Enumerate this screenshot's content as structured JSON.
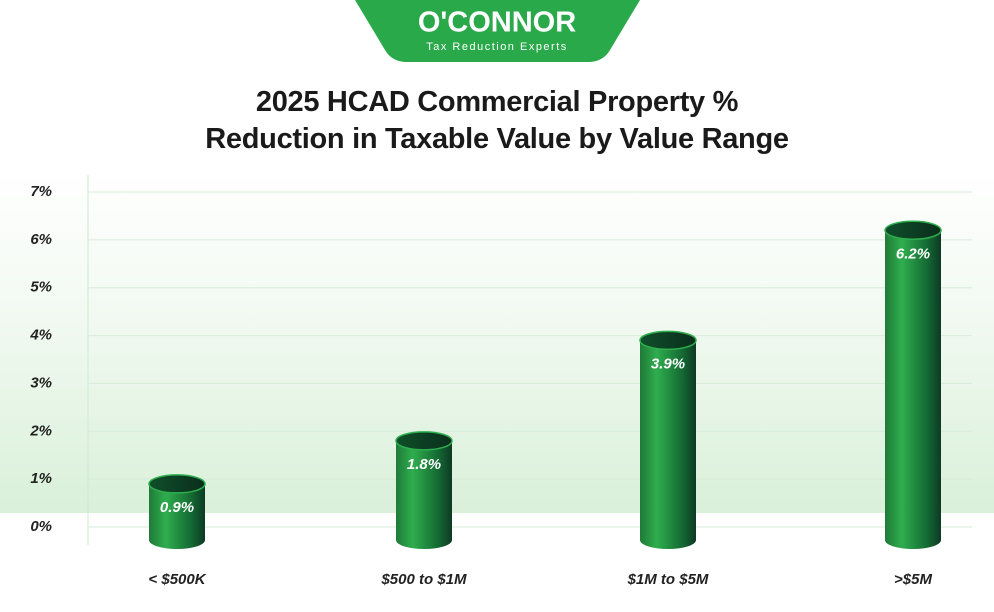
{
  "brand": {
    "name": "O'CONNOR",
    "tagline": "Tax Reduction Experts"
  },
  "chart_data": {
    "type": "bar",
    "title": "2025 HCAD Commercial Property % Reduction in Taxable Value by Value Range",
    "categories": [
      "< $500K",
      "$500 to $1M",
      "$1M to $5M",
      ">$5M"
    ],
    "values": [
      0.9,
      1.8,
      3.9,
      6.2
    ],
    "value_labels": [
      "0.9%",
      "1.8%",
      "3.9%",
      "6.2%"
    ],
    "color": "#249a43",
    "ylim": [
      0,
      7
    ],
    "yticks": [
      {
        "value": 0,
        "label": "0%"
      },
      {
        "value": 1,
        "label": "1%"
      },
      {
        "value": 2,
        "label": "2%"
      },
      {
        "value": 3,
        "label": "3%"
      },
      {
        "value": 4,
        "label": "4%"
      },
      {
        "value": 5,
        "label": "5%"
      },
      {
        "value": 6,
        "label": "6%"
      },
      {
        "value": 7,
        "label": "7%"
      }
    ],
    "grid": true
  }
}
